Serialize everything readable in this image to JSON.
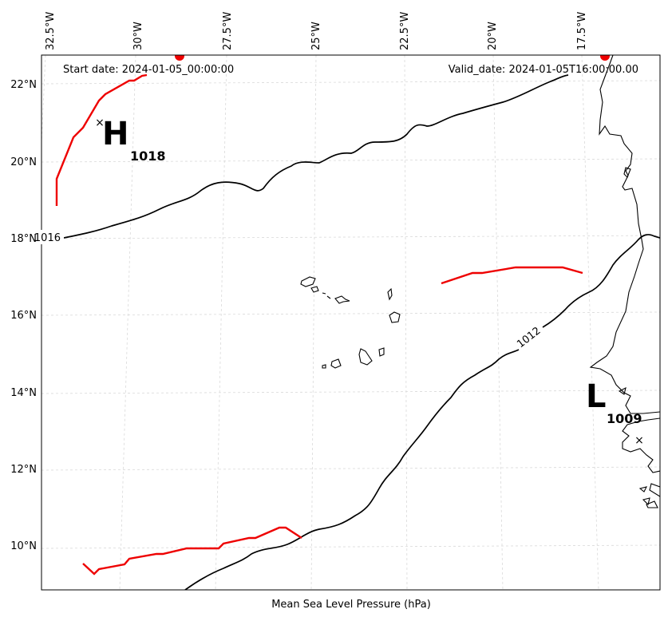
{
  "map": {
    "title": "Mean Sea Level Pressure (hPa)",
    "start_date": "Start date: 2024-01-05_00:00:00",
    "valid_date": "Valid_date: 2024-01-05T16:00:00.00",
    "lon_labels": [
      "32.5°W",
      "30°W",
      "27.5°W",
      "25°W",
      "22.5°W",
      "20°W",
      "17.5°W"
    ],
    "lat_labels": [
      "22°N",
      "20°N",
      "18°N",
      "16°N",
      "14°N",
      "12°N",
      "10°N"
    ],
    "high": {
      "letter": "H",
      "value": "1018"
    },
    "low": {
      "letter": "L",
      "value": "1009"
    },
    "contour_labels": [
      "1016",
      "1012"
    ],
    "colors": {
      "isobar": "#000000",
      "front": "#ee0000",
      "grid": "#d9d9d9"
    }
  }
}
